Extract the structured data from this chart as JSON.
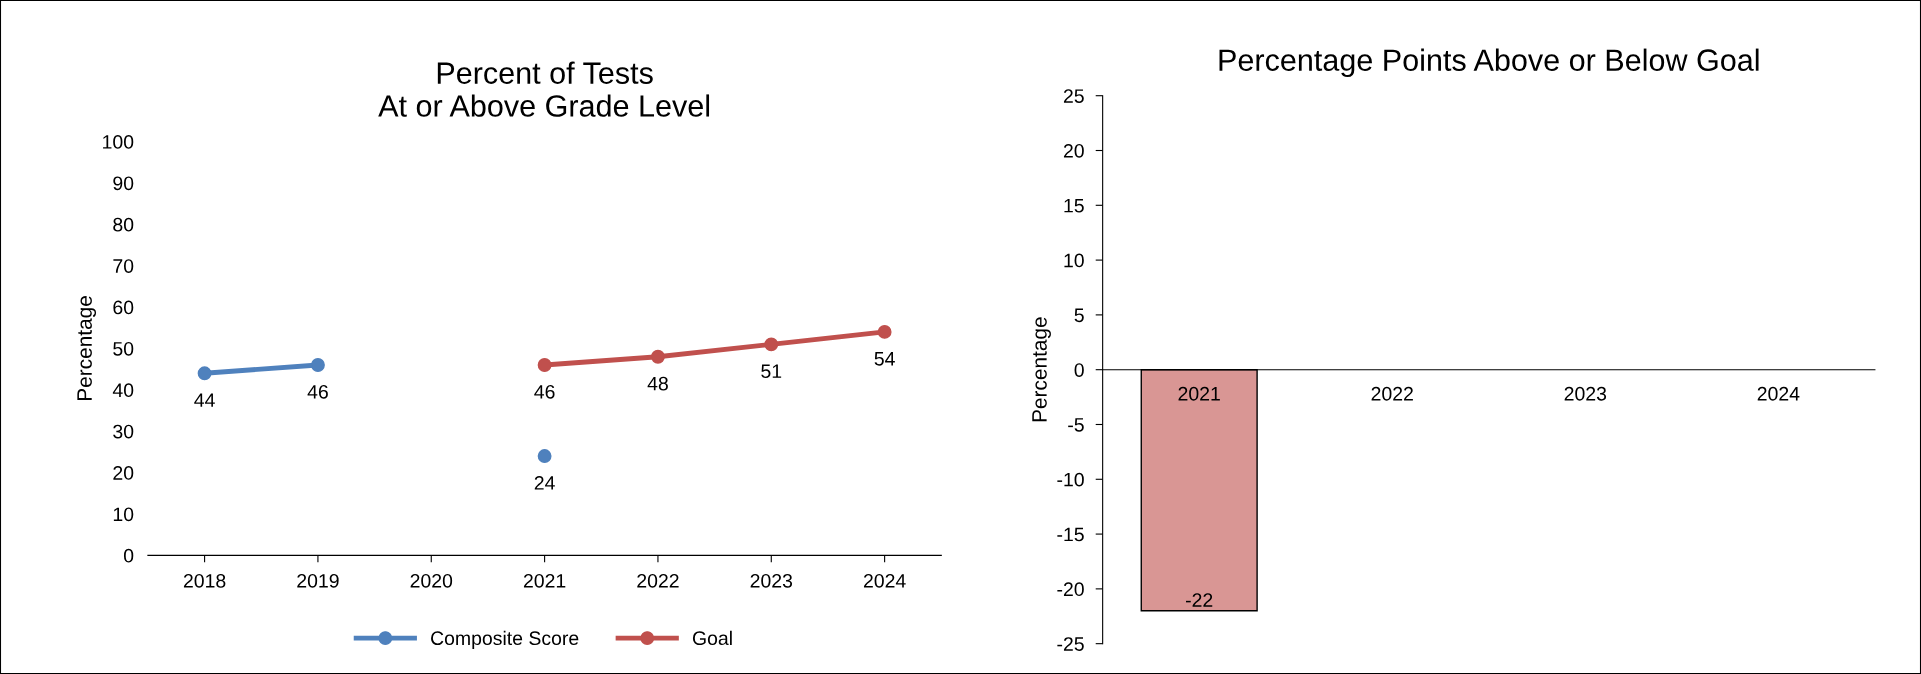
{
  "chart_data": [
    {
      "type": "line",
      "title": "Percent of Tests\nAt or Above Grade Level",
      "ylabel": "Percentage",
      "categories": [
        "2018",
        "2019",
        "2020",
        "2021",
        "2022",
        "2023",
        "2024"
      ],
      "series": [
        {
          "name": "Composite Score",
          "color": "#4f81bd",
          "values": [
            44,
            46,
            null,
            24,
            null,
            null,
            null
          ]
        },
        {
          "name": "Goal",
          "color": "#c0504d",
          "values": [
            null,
            null,
            null,
            46,
            48,
            51,
            54
          ]
        }
      ],
      "ylim": [
        0,
        100
      ],
      "yticks": [
        0,
        10,
        20,
        30,
        40,
        50,
        60,
        70,
        80,
        90,
        100
      ],
      "data_labels": true,
      "legend": "bottom",
      "grid": false,
      "marker": "circle"
    },
    {
      "type": "bar",
      "title": "Percentage Points Above or Below Goal",
      "ylabel": "Percentage",
      "categories": [
        "2021",
        "2022",
        "2023",
        "2024"
      ],
      "series": [
        {
          "color": "#d99694",
          "values": [
            -22,
            null,
            null,
            null
          ]
        }
      ],
      "ylim": [
        -25,
        25
      ],
      "yticks": [
        -25,
        -20,
        -15,
        -10,
        -5,
        0,
        5,
        10,
        15,
        20,
        25
      ],
      "data_labels": true,
      "grid": false
    }
  ]
}
